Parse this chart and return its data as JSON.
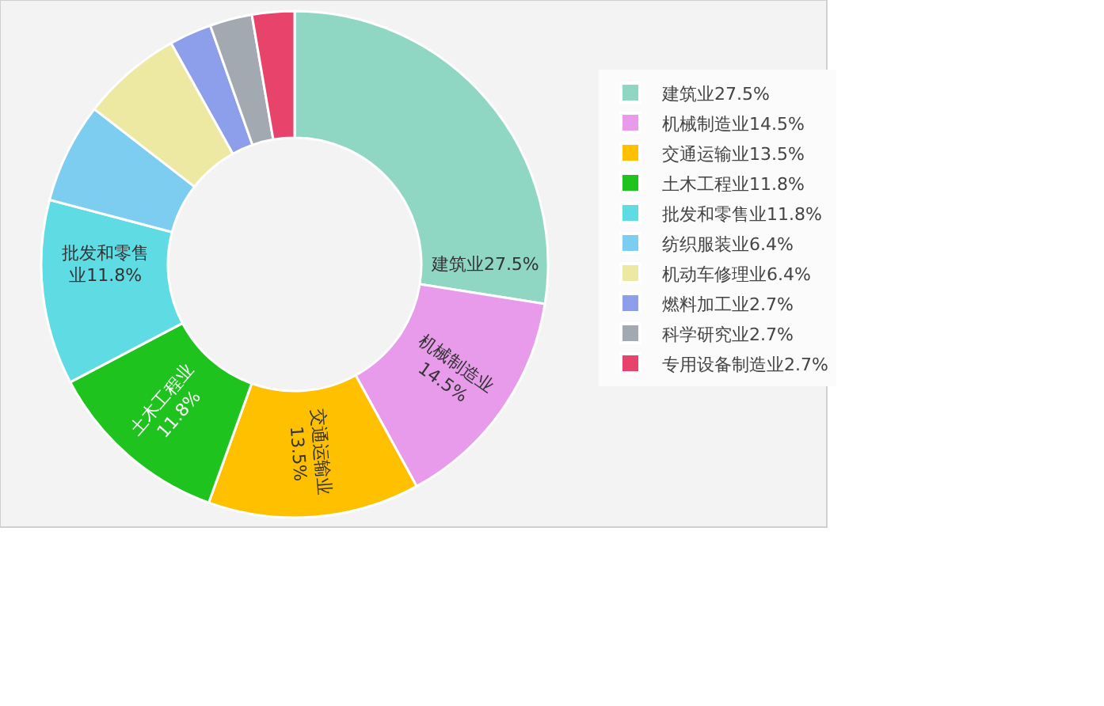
{
  "chart_data": {
    "type": "donut",
    "categories": [
      "建筑业27.5%",
      "机械制造业14.5%",
      "交通运输业13.5%",
      "土木工程业11.8%",
      "批发和零售业11.8%",
      "纺织服装业6.4%",
      "机动车修理业6.4%",
      "燃料加工业2.7%",
      "科学研究业2.7%",
      "专用设备制造业2.7%"
    ],
    "values": [
      27.5,
      14.5,
      13.5,
      11.8,
      11.8,
      6.4,
      6.4,
      2.7,
      2.7,
      2.7
    ],
    "colors": [
      "#8fd6c3",
      "#e79bea",
      "#ffc000",
      "#1ec31e",
      "#5fdce3",
      "#7ccdef",
      "#ede9a3",
      "#8d9eea",
      "#a2a9b0",
      "#e8436a"
    ],
    "value_labels": [
      "建筑业27.5%",
      "机械制造业14.5%",
      "交通运输业13.5%",
      "土木工程业11.8%",
      "批发和零售业11.8%",
      null,
      null,
      null,
      null,
      null
    ],
    "legend": "right"
  }
}
